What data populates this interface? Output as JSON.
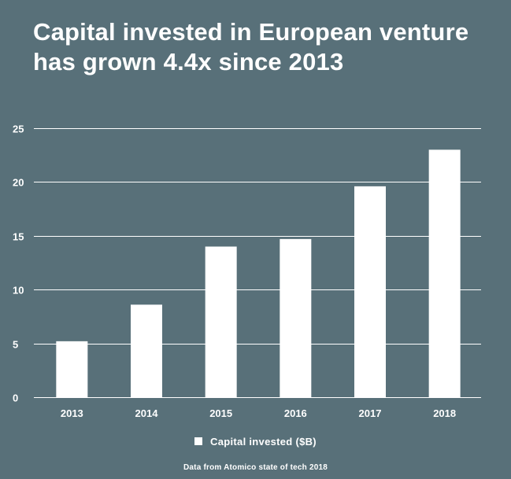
{
  "title_line1": "Capital invested in European venture",
  "title_line2": "has grown 4.4x since 2013",
  "source_note": "Data from Atomico state of tech 2018",
  "colors": {
    "background": "#587079",
    "bars": "#ffffff",
    "gridlines": "#ffffff",
    "text": "#ffffff"
  },
  "chart_data": {
    "type": "bar",
    "categories": [
      "2013",
      "2014",
      "2015",
      "2016",
      "2017",
      "2018"
    ],
    "series": [
      {
        "name": "Capital invested ($B)",
        "values": [
          5.2,
          8.6,
          14.0,
          14.7,
          19.6,
          23.0
        ]
      }
    ],
    "y_ticks": [
      "0",
      "5",
      "10",
      "15",
      "20",
      "25"
    ],
    "ylim": [
      0,
      25
    ],
    "grid": true,
    "legend_position": "bottom"
  }
}
